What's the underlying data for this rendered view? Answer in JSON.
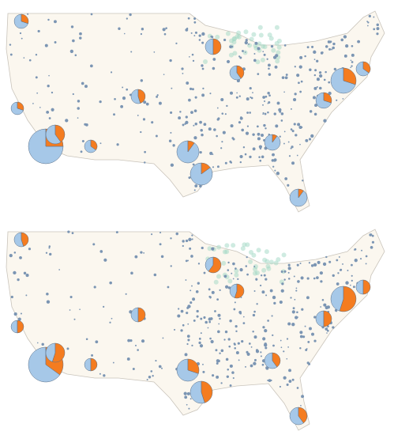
{
  "colors": {
    "blue": "#a6c8e8",
    "orange": "#f47c20"
  },
  "maps": [
    {
      "pies": [
        {
          "blue": 70,
          "orange": 30
        },
        {
          "blue": 75,
          "orange": 25
        },
        {
          "blue": 60,
          "orange": 40
        },
        {
          "blue": 70,
          "orange": 30
        },
        {
          "blue": 65,
          "orange": 35
        },
        {
          "blue": 55,
          "orange": 45
        },
        {
          "blue": 50,
          "orange": 50
        },
        {
          "blue": 90,
          "orange": 10
        },
        {
          "blue": 85,
          "orange": 15
        },
        {
          "blue": 70,
          "orange": 30
        },
        {
          "blue": 65,
          "orange": 35
        },
        {
          "blue": 90,
          "orange": 10
        },
        {
          "blue": 90,
          "orange": 10
        },
        {
          "blue": 60,
          "orange": 40
        },
        {
          "blue": 70,
          "orange": 30
        }
      ]
    },
    {
      "pies": [
        {
          "blue": 50,
          "orange": 50
        },
        {
          "blue": 65,
          "orange": 35
        },
        {
          "blue": 45,
          "orange": 55
        },
        {
          "blue": 55,
          "orange": 45
        },
        {
          "blue": 50,
          "orange": 50
        },
        {
          "blue": 50,
          "orange": 50
        },
        {
          "blue": 40,
          "orange": 60
        },
        {
          "blue": 70,
          "orange": 30
        },
        {
          "blue": 55,
          "orange": 45
        },
        {
          "blue": 45,
          "orange": 55
        },
        {
          "blue": 50,
          "orange": 50
        },
        {
          "blue": 60,
          "orange": 40
        },
        {
          "blue": 60,
          "orange": 40
        },
        {
          "blue": 45,
          "orange": 55
        },
        {
          "blue": 50,
          "orange": 50
        }
      ]
    }
  ]
}
